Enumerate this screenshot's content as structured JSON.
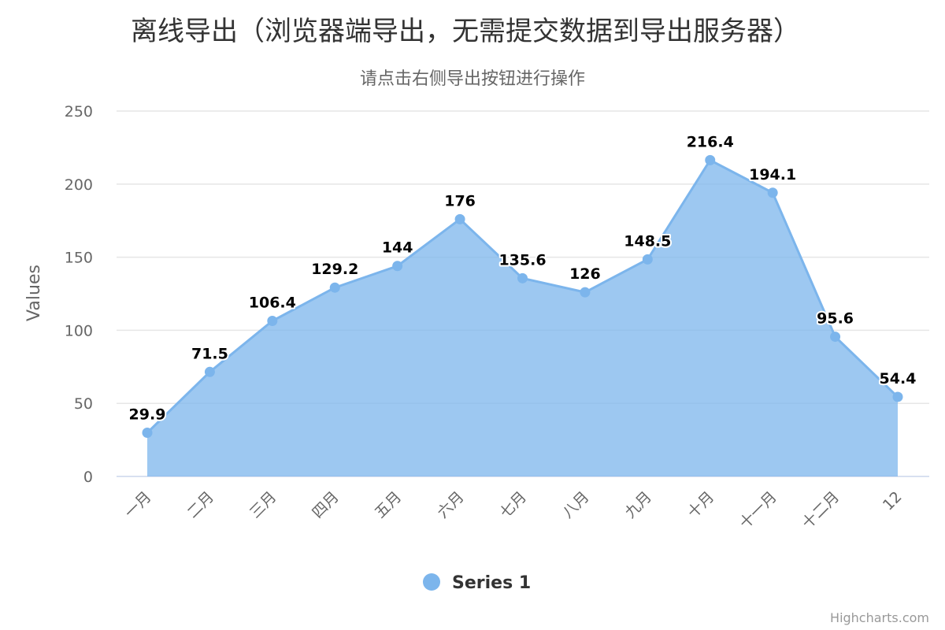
{
  "title": "离线导出（浏览器端导出，无需提交数据到导出服务器）",
  "subtitle": "请点击右侧导出按钮进行操作",
  "credits": "Highcharts.com",
  "colors": {
    "series": "#7cb5ec",
    "grid": "#e6e6e6",
    "axis_line": "#ccd6eb",
    "label": "#666666"
  },
  "chart_data": {
    "type": "area",
    "title": "离线导出（浏览器端导出，无需提交数据到导出服务器）",
    "subtitle": "请点击右侧导出按钮进行操作",
    "categories": [
      "一月",
      "二月",
      "三月",
      "四月",
      "五月",
      "六月",
      "七月",
      "八月",
      "九月",
      "十月",
      "十一月",
      "十二月",
      "12"
    ],
    "series": [
      {
        "name": "Series 1",
        "values": [
          29.9,
          71.5,
          106.4,
          129.2,
          144,
          176,
          135.6,
          126,
          148.5,
          216.4,
          194.1,
          95.6,
          54.4
        ]
      }
    ],
    "ylabel": "Values",
    "yticks": [
      0,
      50,
      100,
      150,
      200,
      250
    ],
    "ylim": [
      0,
      250
    ],
    "grid": true,
    "legend": "bottom-center",
    "data_labels": true
  }
}
